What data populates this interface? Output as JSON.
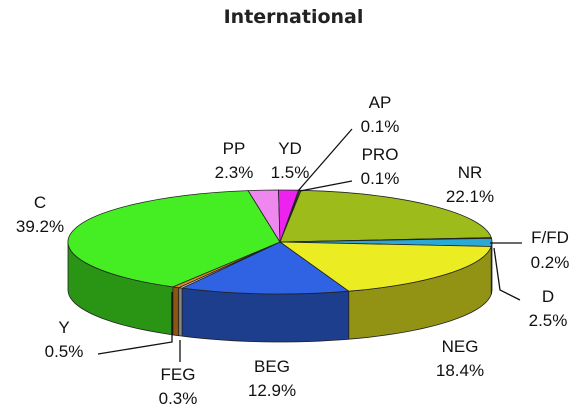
{
  "chart_data": {
    "type": "pie",
    "title": "International",
    "style": "3d",
    "categories": [
      "AP",
      "PRO",
      "NR",
      "F/FD",
      "D",
      "NEG",
      "BEG",
      "FEG",
      "Y",
      "C",
      "PP",
      "YD"
    ],
    "values": [
      0.1,
      0.1,
      22.1,
      0.2,
      2.5,
      18.4,
      12.9,
      0.3,
      0.5,
      39.2,
      2.3,
      1.5
    ],
    "value_labels": [
      "0.1%",
      "0.1%",
      "22.1%",
      "0.2%",
      "2.5%",
      "18.4%",
      "12.9%",
      "0.3%",
      "0.5%",
      "39.2%",
      "2.3%",
      "1.5%"
    ],
    "colors": [
      "#2f8a2a",
      "#6b8f1a",
      "#9dbb1a",
      "#33bde8",
      "#2aa8d6",
      "#ecec22",
      "#2f63e3",
      "#d8d8d8",
      "#e08a1a",
      "#44ee22",
      "#ee88ee",
      "#ee22ee"
    ],
    "legend": "none"
  }
}
